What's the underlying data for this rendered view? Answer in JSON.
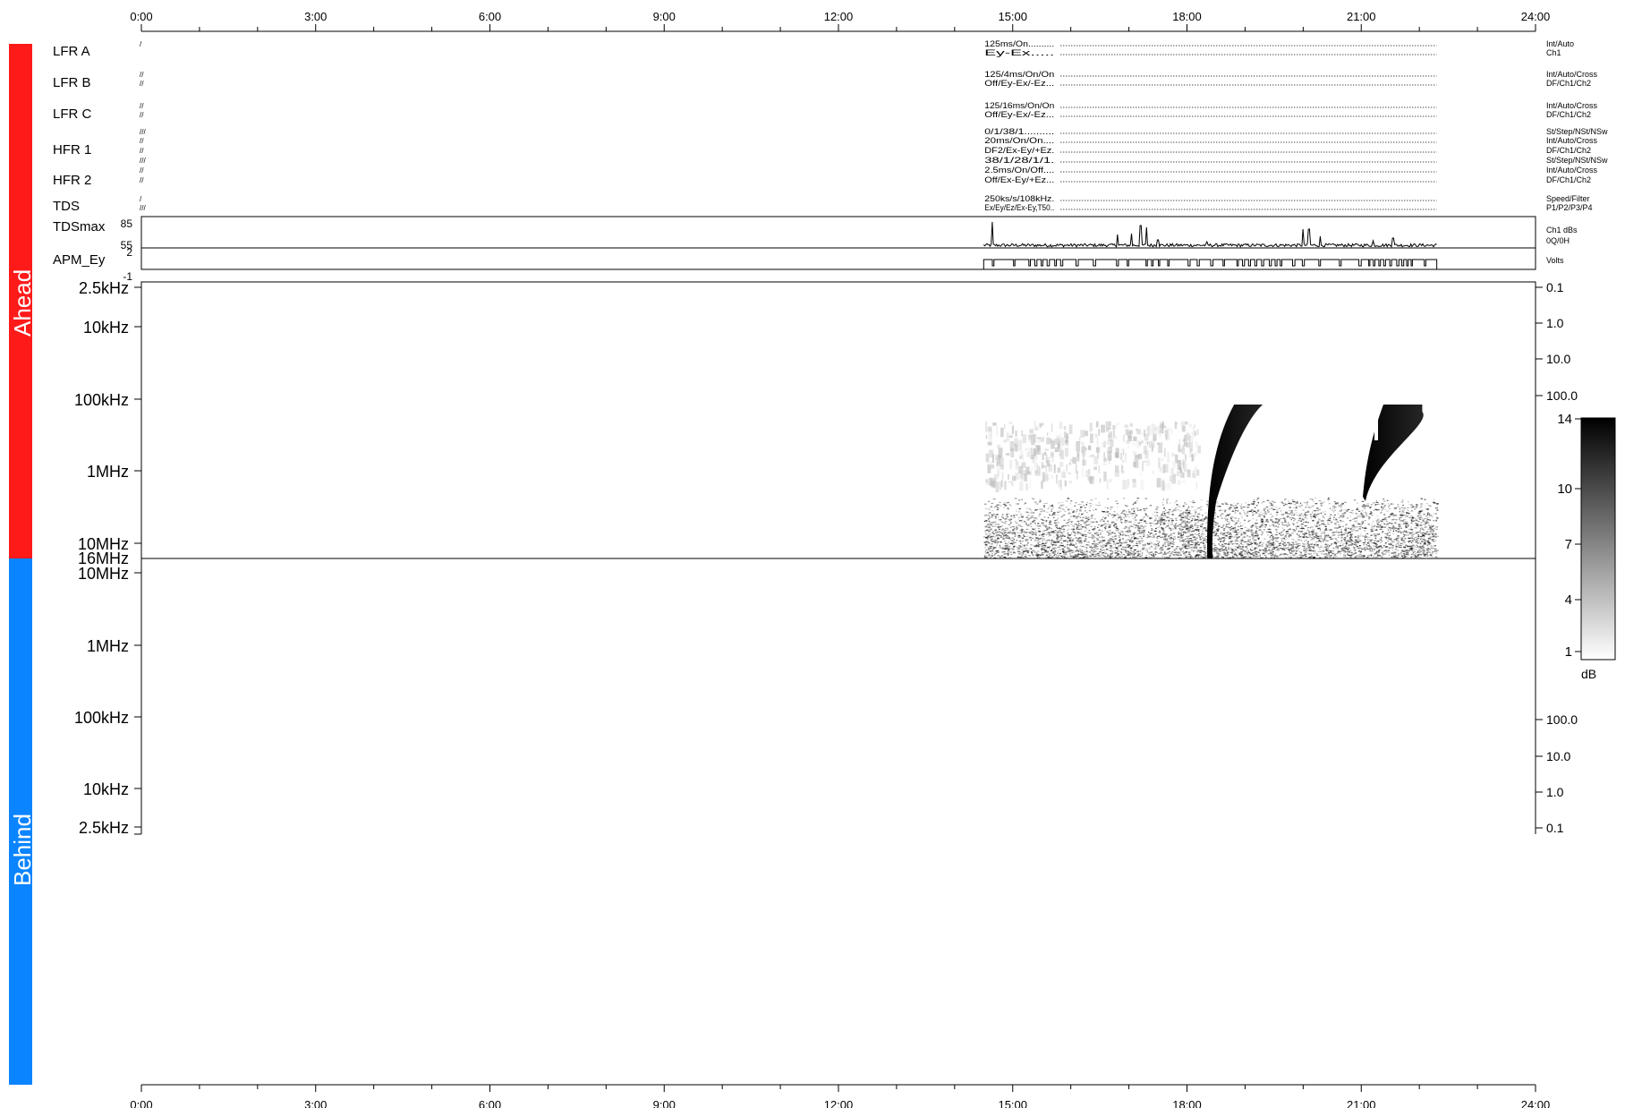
{
  "chart_data": {
    "type": "heatmap",
    "time_axis": {
      "range_hours": [
        0,
        24
      ],
      "tick_labels": [
        "0:00",
        "3:00",
        "6:00",
        "9:00",
        "12:00",
        "15:00",
        "18:00",
        "21:00",
        "24:00"
      ]
    },
    "sides": [
      {
        "label": "Ahead",
        "color": "#ff1a1a"
      },
      {
        "label": "Behind",
        "color": "#0a84ff"
      }
    ],
    "instrument_rows": [
      {
        "name": "LFR A",
        "lines": [
          {
            "prefix": "/",
            "text": "125ms/On..........",
            "mode": "Int/Auto"
          },
          {
            "prefix": "",
            "text": "Ey-Ex.....",
            "mode": "Ch1"
          }
        ]
      },
      {
        "name": "LFR B",
        "lines": [
          {
            "prefix": "//",
            "text": "125/4ms/On/On",
            "mode": "Int/Auto/Cross"
          },
          {
            "prefix": "//",
            "text": "Off/Ey-Ex/-Ez...",
            "mode": "DF/Ch1/Ch2"
          }
        ]
      },
      {
        "name": "LFR C",
        "lines": [
          {
            "prefix": "//",
            "text": "125/16ms/On/On",
            "mode": "Int/Auto/Cross"
          },
          {
            "prefix": "//",
            "text": "Off/Ey-Ex/-Ez...",
            "mode": "DF/Ch1/Ch2"
          }
        ]
      },
      {
        "name": "HFR 1",
        "lines": [
          {
            "prefix": "///",
            "text": "0/1/38/1..........",
            "mode": "St/Step/NSt/NSw"
          },
          {
            "prefix": "//",
            "text": "20ms/On/On....",
            "mode": "Int/Auto/Cross"
          },
          {
            "prefix": "//",
            "text": "DF2/Ex-Ey/+Ez.",
            "mode": "DF/Ch1/Ch2"
          }
        ]
      },
      {
        "name": "HFR 2",
        "lines": [
          {
            "prefix": "///",
            "text": "38/1/28/1/1.",
            "mode": "St/Step/NSt/NSw"
          },
          {
            "prefix": "//",
            "text": "2.5ms/On/Off....",
            "mode": "Int/Auto/Cross"
          },
          {
            "prefix": "//",
            "text": "Off/Ex-Ey/+Ez...",
            "mode": "DF/Ch1/Ch2"
          }
        ]
      },
      {
        "name": "TDS",
        "lines": [
          {
            "prefix": "/",
            "text": "250ks/s/108kHz.",
            "mode": "Speed/Filter"
          },
          {
            "prefix": "///",
            "text": "Ex/Ey/Ez/Ex-Ey,T50..",
            "mode": "P1/P2/P3/P4"
          }
        ]
      }
    ],
    "tdsmax": {
      "name": "TDSmax",
      "ytick_labels": [
        "85",
        "55"
      ],
      "unit_lines": [
        "Ch1 dBs",
        "0Q/0H"
      ],
      "start_hour": 14.5,
      "end_hour": 22.3,
      "baseline": 58,
      "spikes": [
        [
          14.65,
          84
        ],
        [
          16.8,
          70
        ],
        [
          17.05,
          71
        ],
        [
          17.2,
          80
        ],
        [
          17.3,
          78
        ],
        [
          17.5,
          64
        ],
        [
          18.35,
          62
        ],
        [
          20.0,
          76
        ],
        [
          20.1,
          76
        ],
        [
          20.3,
          68
        ],
        [
          21.2,
          63
        ],
        [
          21.55,
          66
        ]
      ]
    },
    "apm": {
      "name": "APM_Ey",
      "ytick_labels": [
        "2",
        "-1"
      ],
      "unit": "Volts",
      "start_hour": 14.5,
      "end_hour": 22.3,
      "dense_intervals": [
        [
          15.2,
          15.8
        ],
        [
          17.0,
          17.5
        ],
        [
          18.8,
          19.6
        ],
        [
          21.0,
          21.8
        ]
      ]
    },
    "spectrogram_ahead": {
      "freq_tick_labels": [
        "2.5kHz",
        "10kHz",
        "100kHz",
        "1MHz",
        "10MHz",
        "16MHz"
      ],
      "right_tick_labels": [
        "0.1",
        "1.0",
        "10.0",
        "100.0"
      ],
      "data_start_hour": 14.5,
      "data_end_hour": 22.3,
      "bursts": [
        {
          "type": "type III radio burst",
          "hour_high_freq": 18.38,
          "hour_low_freq": 18.95,
          "freq_start": "16MHz",
          "freq_end": "100kHz"
        },
        {
          "type": "type III radio burst",
          "hour_high_freq": 20.95,
          "hour_low_freq": 22.05,
          "freq_start": "2MHz",
          "freq_end": "100kHz"
        }
      ]
    },
    "spectrogram_behind": {
      "freq_tick_labels": [
        "10MHz",
        "1MHz",
        "100kHz",
        "10kHz",
        "2.5kHz"
      ],
      "right_tick_labels": [
        "100.0",
        "10.0",
        "1.0",
        "0.1"
      ]
    },
    "colorbar": {
      "tick_labels": [
        "14",
        "10",
        "7",
        "4",
        "1"
      ],
      "range_db": [
        1,
        14
      ],
      "unit": "dB"
    }
  }
}
